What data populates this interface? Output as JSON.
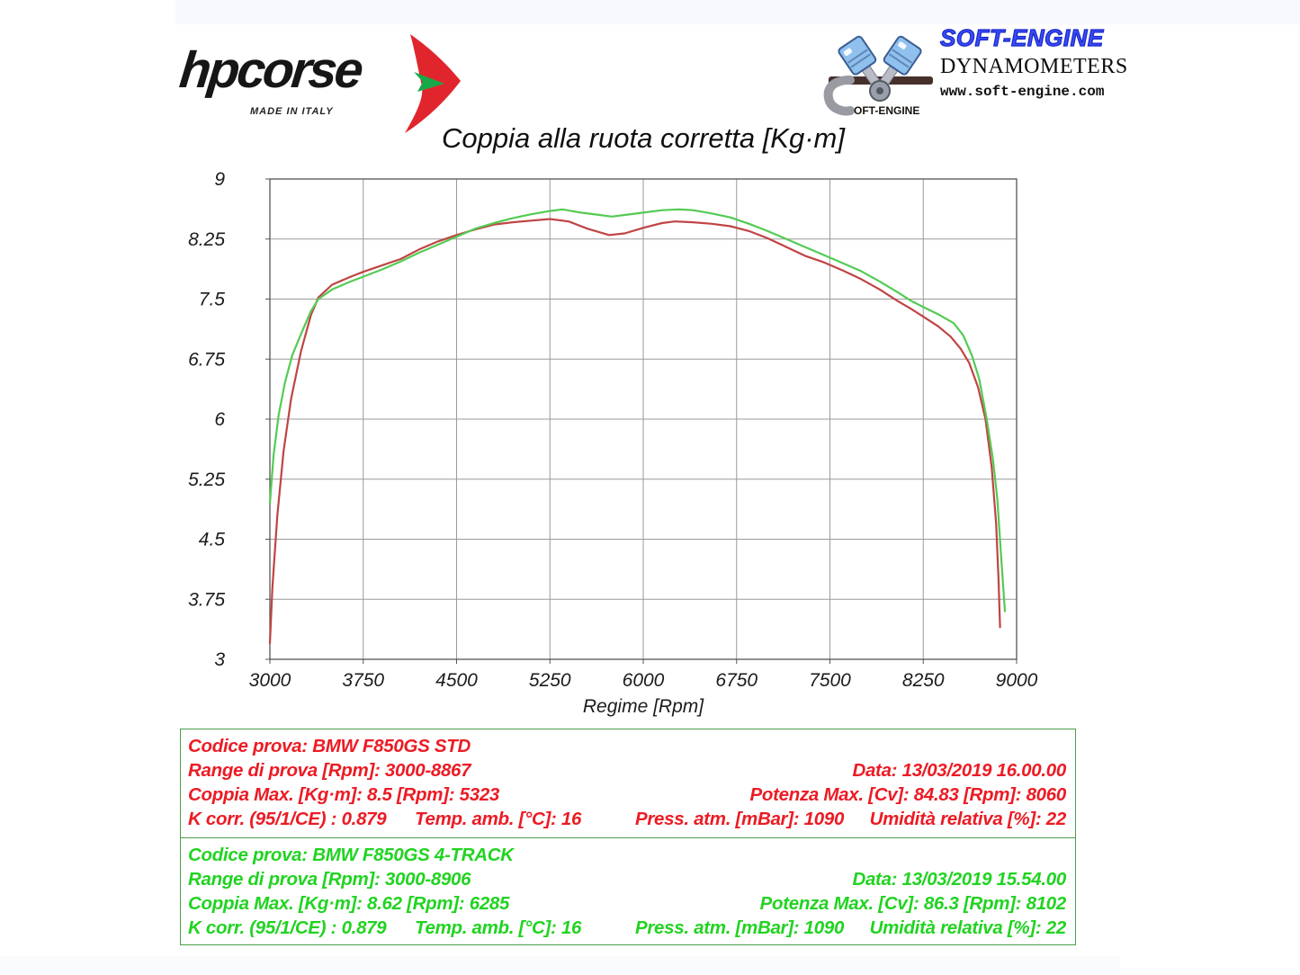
{
  "header": {
    "hpcorse": {
      "wordmark": "hpcorse",
      "tagline": "MADE IN ITALY"
    },
    "softengine": {
      "brand": "SOFT-ENGINE",
      "subtitle": "DYNAMOMETERS",
      "url": "www.soft-engine.com",
      "s_wordmark": "OFT-ENGINE"
    }
  },
  "chart_data": {
    "type": "line",
    "title": "Coppia alla ruota corretta [Kg·m]",
    "xlabel": "Regime [Rpm]",
    "ylabel": "",
    "xlim": [
      3000,
      9000
    ],
    "ylim": [
      3,
      9
    ],
    "x_ticks": [
      "3000",
      "3750",
      "4500",
      "5250",
      "6000",
      "6750",
      "7500",
      "8250",
      "9000"
    ],
    "y_ticks": [
      "9",
      "8.25",
      "7.5",
      "6.75",
      "6",
      "5.25",
      "4.5",
      "3.75",
      "3"
    ],
    "grid": true,
    "legend_position": "none",
    "series": [
      {
        "name": "BMW F850GS STD",
        "color": "#c04444",
        "points": [
          [
            3000,
            3.2
          ],
          [
            3020,
            3.9
          ],
          [
            3060,
            4.8
          ],
          [
            3110,
            5.6
          ],
          [
            3170,
            6.25
          ],
          [
            3250,
            6.85
          ],
          [
            3330,
            7.3
          ],
          [
            3390,
            7.52
          ],
          [
            3500,
            7.68
          ],
          [
            3650,
            7.78
          ],
          [
            3750,
            7.84
          ],
          [
            3900,
            7.92
          ],
          [
            4050,
            8.0
          ],
          [
            4200,
            8.12
          ],
          [
            4350,
            8.22
          ],
          [
            4500,
            8.3
          ],
          [
            4650,
            8.37
          ],
          [
            4800,
            8.43
          ],
          [
            4950,
            8.46
          ],
          [
            5100,
            8.48
          ],
          [
            5250,
            8.5
          ],
          [
            5400,
            8.47
          ],
          [
            5550,
            8.38
          ],
          [
            5725,
            8.3
          ],
          [
            5850,
            8.32
          ],
          [
            6000,
            8.39
          ],
          [
            6150,
            8.45
          ],
          [
            6253,
            8.47
          ],
          [
            6400,
            8.46
          ],
          [
            6550,
            8.44
          ],
          [
            6700,
            8.41
          ],
          [
            6850,
            8.35
          ],
          [
            7000,
            8.26
          ],
          [
            7150,
            8.15
          ],
          [
            7300,
            8.04
          ],
          [
            7450,
            7.96
          ],
          [
            7600,
            7.86
          ],
          [
            7750,
            7.75
          ],
          [
            7900,
            7.62
          ],
          [
            8050,
            7.47
          ],
          [
            8150,
            7.38
          ],
          [
            8250,
            7.28
          ],
          [
            8370,
            7.16
          ],
          [
            8470,
            7.03
          ],
          [
            8550,
            6.88
          ],
          [
            8620,
            6.7
          ],
          [
            8690,
            6.4
          ],
          [
            8750,
            6.0
          ],
          [
            8800,
            5.4
          ],
          [
            8835,
            4.7
          ],
          [
            8855,
            4.0
          ],
          [
            8867,
            3.4
          ]
        ]
      },
      {
        "name": "BMW F850GS 4-TRACK",
        "color": "#53cb53",
        "points": [
          [
            3000,
            4.95
          ],
          [
            3030,
            5.55
          ],
          [
            3070,
            6.05
          ],
          [
            3120,
            6.45
          ],
          [
            3180,
            6.8
          ],
          [
            3260,
            7.1
          ],
          [
            3330,
            7.35
          ],
          [
            3390,
            7.5
          ],
          [
            3500,
            7.62
          ],
          [
            3650,
            7.72
          ],
          [
            3750,
            7.78
          ],
          [
            3900,
            7.87
          ],
          [
            4050,
            7.97
          ],
          [
            4200,
            8.08
          ],
          [
            4350,
            8.18
          ],
          [
            4500,
            8.28
          ],
          [
            4650,
            8.38
          ],
          [
            4800,
            8.45
          ],
          [
            4950,
            8.51
          ],
          [
            5100,
            8.56
          ],
          [
            5250,
            8.6
          ],
          [
            5350,
            8.62
          ],
          [
            5500,
            8.58
          ],
          [
            5650,
            8.55
          ],
          [
            5747,
            8.53
          ],
          [
            5850,
            8.55
          ],
          [
            6000,
            8.58
          ],
          [
            6150,
            8.61
          ],
          [
            6285,
            8.62
          ],
          [
            6400,
            8.61
          ],
          [
            6550,
            8.57
          ],
          [
            6700,
            8.52
          ],
          [
            6850,
            8.44
          ],
          [
            7000,
            8.35
          ],
          [
            7150,
            8.25
          ],
          [
            7300,
            8.15
          ],
          [
            7450,
            8.05
          ],
          [
            7600,
            7.95
          ],
          [
            7750,
            7.85
          ],
          [
            7900,
            7.72
          ],
          [
            8050,
            7.58
          ],
          [
            8150,
            7.48
          ],
          [
            8250,
            7.4
          ],
          [
            8370,
            7.31
          ],
          [
            8494,
            7.2
          ],
          [
            8570,
            7.05
          ],
          [
            8640,
            6.8
          ],
          [
            8700,
            6.5
          ],
          [
            8760,
            6.0
          ],
          [
            8810,
            5.5
          ],
          [
            8845,
            5.0
          ],
          [
            8875,
            4.3
          ],
          [
            8906,
            3.6
          ]
        ]
      }
    ]
  },
  "info_boxes": [
    {
      "id": "std",
      "text_color": "#ec1b24",
      "codice": "Codice prova: BMW F850GS STD",
      "range": "Range di prova [Rpm]: 3000-8867",
      "data": "Data: 13/03/2019  16.00.00",
      "coppia": "Coppia Max. [Kg·m]: 8.5  [Rpm]: 5323",
      "potenza": "Potenza Max. [Cv]: 84.83  [Rpm]: 8060",
      "kcorr": "K corr. (95/1/CE) : 0.879",
      "temp": "Temp. amb. [°C]: 16",
      "press": "Press. atm. [mBar]: 1090",
      "umidita": "Umidità relativa [%]: 22"
    },
    {
      "id": "track",
      "text_color": "#21d321",
      "codice": "Codice prova: BMW F850GS 4-TRACK",
      "range": "Range di prova [Rpm]: 3000-8906",
      "data": "Data: 13/03/2019  15.54.00",
      "coppia": "Coppia Max. [Kg·m]: 8.62  [Rpm]: 6285",
      "potenza": "Potenza Max. [Cv]: 86.3  [Rpm]: 8102",
      "kcorr": "K corr. (95/1/CE) : 0.879",
      "temp": "Temp. amb. [°C]: 16",
      "press": "Press. atm. [mBar]: 1090",
      "umidita": "Umidità relativa [%]: 22"
    }
  ]
}
